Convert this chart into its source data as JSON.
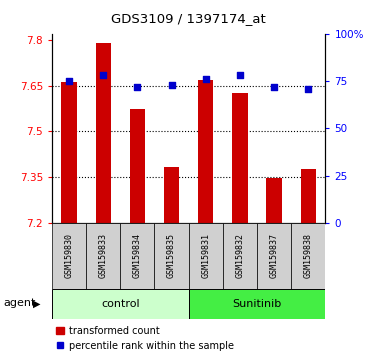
{
  "title": "GDS3109 / 1397174_at",
  "samples": [
    "GSM159830",
    "GSM159833",
    "GSM159834",
    "GSM159835",
    "GSM159831",
    "GSM159832",
    "GSM159837",
    "GSM159838"
  ],
  "bar_values": [
    7.662,
    7.788,
    7.572,
    7.382,
    7.668,
    7.625,
    7.346,
    7.378
  ],
  "percentile_values": [
    75,
    78,
    72,
    73,
    76,
    78,
    72,
    71
  ],
  "control_count": 4,
  "sunitinib_count": 4,
  "bar_color": "#cc0000",
  "dot_color": "#0000cc",
  "bar_bottom": 7.2,
  "ylim_left": [
    7.2,
    7.82
  ],
  "ylim_right": [
    0,
    100
  ],
  "yticks_left": [
    7.2,
    7.35,
    7.5,
    7.65,
    7.8
  ],
  "yticks_right": [
    0,
    25,
    50,
    75,
    100
  ],
  "ytick_labels_right": [
    "0",
    "25",
    "50",
    "75",
    "100%"
  ],
  "hlines": [
    7.35,
    7.5,
    7.65
  ],
  "control_label": "control",
  "sunitinib_label": "Sunitinib",
  "agent_label": "agent",
  "legend_bar_label": "transformed count",
  "legend_dot_label": "percentile rank within the sample",
  "control_bg": "#ccffcc",
  "sunitinib_bg": "#44ee44",
  "sample_bg": "#d0d0d0",
  "bar_width": 0.45
}
